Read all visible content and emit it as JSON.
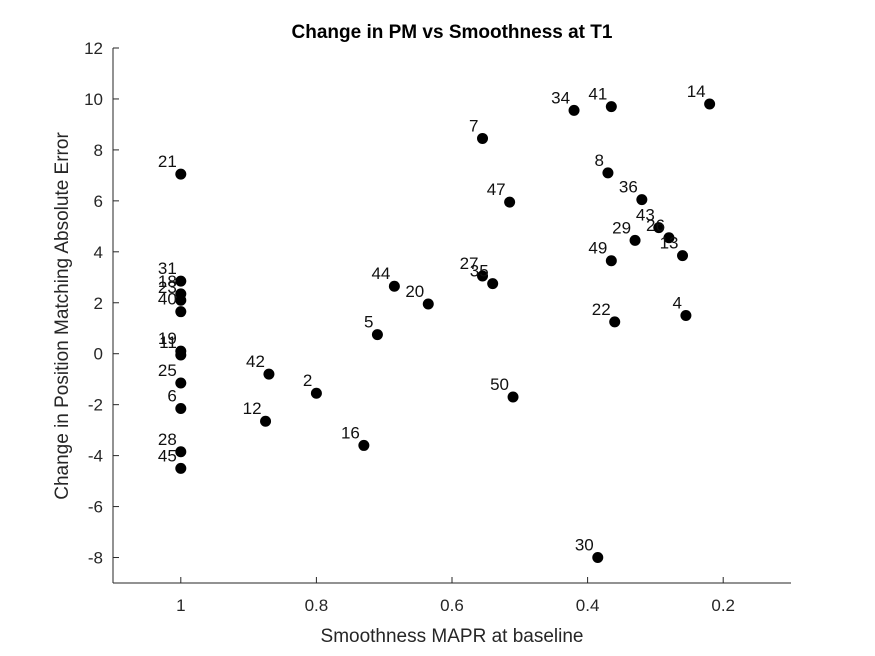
{
  "chart_data": {
    "type": "scatter",
    "title": "Change in PM vs Smoothness at T1",
    "xlabel": "Smoothness MAPR at baseline",
    "ylabel": "Change in Position Matching Absolute Error",
    "x_reversed": true,
    "xlim": [
      0.1,
      1.1
    ],
    "ylim": [
      -9,
      12
    ],
    "x_ticks": [
      1,
      0.8,
      0.6,
      0.4,
      0.2
    ],
    "x_tick_labels": [
      "1",
      "0.8",
      "0.6",
      "0.4",
      "0.2"
    ],
    "y_ticks": [
      -8,
      -6,
      -4,
      -2,
      0,
      2,
      4,
      6,
      8,
      10,
      12
    ],
    "y_tick_labels": [
      "-8",
      "-6",
      "-4",
      "-2",
      "0",
      "2",
      "4",
      "6",
      "8",
      "10",
      "12"
    ],
    "grid": false,
    "legend": "none",
    "marker_color": "#000000",
    "points": [
      {
        "label": "14",
        "x": 0.22,
        "y": 9.8
      },
      {
        "label": "41",
        "x": 0.365,
        "y": 9.7
      },
      {
        "label": "34",
        "x": 0.42,
        "y": 9.55
      },
      {
        "label": "7",
        "x": 0.555,
        "y": 8.45
      },
      {
        "label": "21",
        "x": 1.0,
        "y": 7.05
      },
      {
        "label": "8",
        "x": 0.37,
        "y": 7.1
      },
      {
        "label": "36",
        "x": 0.32,
        "y": 6.05
      },
      {
        "label": "47",
        "x": 0.515,
        "y": 5.95
      },
      {
        "label": "43",
        "x": 0.295,
        "y": 4.95
      },
      {
        "label": "26",
        "x": 0.28,
        "y": 4.55
      },
      {
        "label": "29",
        "x": 0.33,
        "y": 4.45
      },
      {
        "label": "13",
        "x": 0.26,
        "y": 3.85
      },
      {
        "label": "49",
        "x": 0.365,
        "y": 3.65
      },
      {
        "label": "27",
        "x": 0.555,
        "y": 3.05
      },
      {
        "label": "35",
        "x": 0.54,
        "y": 2.75
      },
      {
        "label": "31",
        "x": 1.0,
        "y": 2.85
      },
      {
        "label": "44",
        "x": 0.685,
        "y": 2.65
      },
      {
        "label": "18",
        "x": 1.0,
        "y": 2.35
      },
      {
        "label": "23",
        "x": 1.0,
        "y": 2.1
      },
      {
        "label": "20",
        "x": 0.635,
        "y": 1.95
      },
      {
        "label": "40",
        "x": 1.0,
        "y": 1.65
      },
      {
        "label": "4",
        "x": 0.255,
        "y": 1.5
      },
      {
        "label": "22",
        "x": 0.36,
        "y": 1.25
      },
      {
        "label": "5",
        "x": 0.71,
        "y": 0.75
      },
      {
        "label": "19",
        "x": 1.0,
        "y": 0.1
      },
      {
        "label": "11",
        "x": 1.0,
        "y": -0.05
      },
      {
        "label": "42",
        "x": 0.87,
        "y": -0.8
      },
      {
        "label": "25",
        "x": 1.0,
        "y": -1.15
      },
      {
        "label": "2",
        "x": 0.8,
        "y": -1.55
      },
      {
        "label": "50",
        "x": 0.51,
        "y": -1.7
      },
      {
        "label": "6",
        "x": 1.0,
        "y": -2.15
      },
      {
        "label": "12",
        "x": 0.875,
        "y": -2.65
      },
      {
        "label": "16",
        "x": 0.73,
        "y": -3.6
      },
      {
        "label": "28",
        "x": 1.0,
        "y": -3.85
      },
      {
        "label": "45",
        "x": 1.0,
        "y": -4.5
      },
      {
        "label": "30",
        "x": 0.385,
        "y": -8.0
      }
    ]
  }
}
